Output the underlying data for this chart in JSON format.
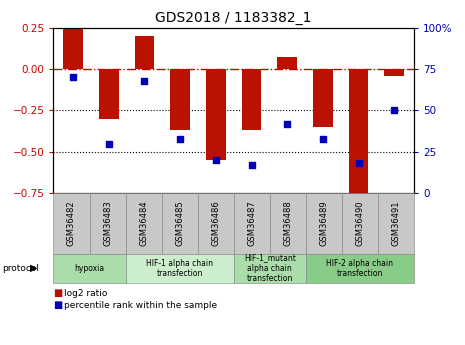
{
  "title": "GDS2018 / 1183382_1",
  "categories": [
    "GSM36482",
    "GSM36483",
    "GSM36484",
    "GSM36485",
    "GSM36486",
    "GSM36487",
    "GSM36488",
    "GSM36489",
    "GSM36490",
    "GSM36491"
  ],
  "log2_ratio": [
    0.25,
    -0.3,
    0.2,
    -0.37,
    -0.55,
    -0.37,
    0.07,
    -0.35,
    -0.8,
    -0.04
  ],
  "percentile_rank": [
    70,
    30,
    68,
    33,
    20,
    17,
    42,
    33,
    18,
    50
  ],
  "ylim_left": [
    -0.75,
    0.25
  ],
  "ylim_right": [
    0,
    100
  ],
  "yticks_left": [
    0.25,
    0,
    -0.25,
    -0.5,
    -0.75
  ],
  "yticks_right": [
    100,
    75,
    50,
    25,
    0
  ],
  "bar_color": "#BB1100",
  "dot_color": "#0000BB",
  "dashed_line_color": "#CC0000",
  "protocol_groups": [
    {
      "label": "hypoxia",
      "start": 0,
      "end": 1,
      "color": "#AADDAA"
    },
    {
      "label": "HIF-1 alpha chain\ntransfection",
      "start": 2,
      "end": 4,
      "color": "#CCEECC"
    },
    {
      "label": "HIF-1_mutant\nalpha chain\ntransfection",
      "start": 5,
      "end": 6,
      "color": "#AADDAA"
    },
    {
      "label": "HIF-2 alpha chain\ntransfection",
      "start": 7,
      "end": 9,
      "color": "#88CC88"
    }
  ],
  "legend_log2_color": "#BB1100",
  "legend_pct_color": "#0000BB",
  "bar_width": 0.55,
  "tick_label_fontsize": 6.5,
  "title_fontsize": 10
}
